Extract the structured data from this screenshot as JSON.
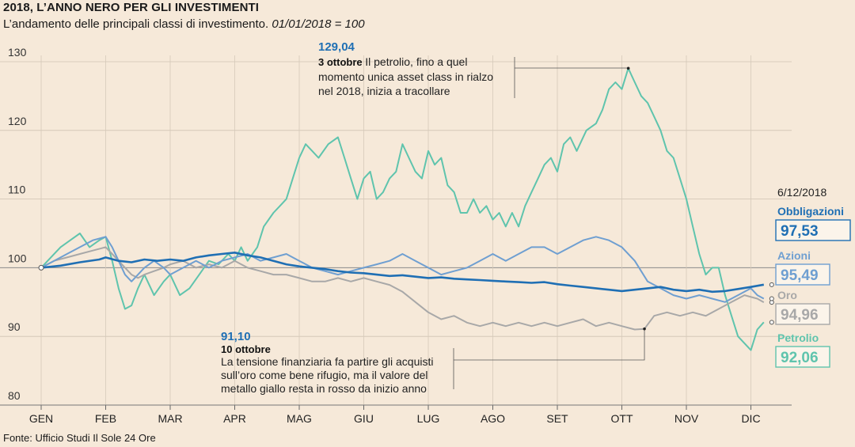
{
  "header": {
    "title": "2018, L’ANNO NERO PER GLI INVESTIMENTI",
    "subtitle": "L’andamento delle principali classi di investimento.",
    "subtitle_italic": "01/01/2018 = 100"
  },
  "footer": {
    "source": "Fonte: Ufficio Studi Il Sole 24 Ore"
  },
  "chart_data": {
    "type": "line",
    "title": "2018, L’ANNO NERO PER GLI INVESTIMENTI",
    "subtitle": "L’andamento delle principali classi di investimento. 01/01/2018 = 100",
    "xlabel": "",
    "ylabel": "",
    "ylim": [
      80,
      130
    ],
    "yticks": [
      80,
      90,
      100,
      110,
      120,
      130
    ],
    "grid": true,
    "month_labels": [
      "GEN",
      "FEB",
      "MAR",
      "APR",
      "MAG",
      "GIU",
      "LUG",
      "AGO",
      "SET",
      "OTT",
      "NOV",
      "DIC"
    ],
    "x_unit": "months since 1 Jan 2018 (0 = GEN, 11 = DIC)",
    "reference_line": 100,
    "legend": {
      "date": "6/12/2018",
      "placement": "right",
      "entries": [
        {
          "name": "Obbligazioni",
          "value": "97,53",
          "color": "#1f6fb4"
        },
        {
          "name": "Azioni",
          "value": "95,49",
          "color": "#6f9fd1"
        },
        {
          "name": "Oro",
          "value": "94,96",
          "color": "#a8a8a8"
        },
        {
          "name": "Petrolio",
          "value": "92,06",
          "color": "#5fc4ad"
        }
      ]
    },
    "annotations": [
      {
        "value": "129,04",
        "date": "3 ottobre",
        "lines": [
          "Il petrolio, fino a quel",
          "momento unica asset class in rialzo",
          "nel 2018, inizia a tracollare"
        ],
        "series": "Petrolio",
        "point": [
          9.1,
          129.04
        ]
      },
      {
        "value": "91,10",
        "date": "10 ottobre",
        "lines": [
          "La tensione finanziaria fa partire gli acquisti",
          "sull’oro come bene rifugio, ma il valore del",
          "metallo giallo resta in rosso da inizio anno"
        ],
        "series": "Oro",
        "point": [
          9.35,
          91.1
        ]
      }
    ],
    "series": [
      {
        "name": "Petrolio",
        "color": "#5fc4ad",
        "points": [
          [
            0,
            100
          ],
          [
            0.15,
            101.5
          ],
          [
            0.3,
            103
          ],
          [
            0.45,
            104
          ],
          [
            0.6,
            105
          ],
          [
            0.75,
            103
          ],
          [
            0.9,
            104
          ],
          [
            1.0,
            104.5
          ],
          [
            1.1,
            101
          ],
          [
            1.2,
            97
          ],
          [
            1.3,
            94
          ],
          [
            1.4,
            94.5
          ],
          [
            1.5,
            97
          ],
          [
            1.6,
            99
          ],
          [
            1.75,
            96
          ],
          [
            1.9,
            98
          ],
          [
            2.0,
            99
          ],
          [
            2.15,
            96
          ],
          [
            2.3,
            97
          ],
          [
            2.45,
            99
          ],
          [
            2.6,
            101
          ],
          [
            2.75,
            100.5
          ],
          [
            2.9,
            102
          ],
          [
            3.0,
            101
          ],
          [
            3.1,
            103
          ],
          [
            3.2,
            101
          ],
          [
            3.35,
            103
          ],
          [
            3.45,
            106
          ],
          [
            3.6,
            108
          ],
          [
            3.7,
            109
          ],
          [
            3.8,
            110
          ],
          [
            3.9,
            113
          ],
          [
            4.0,
            116
          ],
          [
            4.1,
            118
          ],
          [
            4.2,
            117
          ],
          [
            4.3,
            116
          ],
          [
            4.45,
            118
          ],
          [
            4.6,
            119
          ],
          [
            4.7,
            116
          ],
          [
            4.8,
            113
          ],
          [
            4.9,
            110
          ],
          [
            5.0,
            113
          ],
          [
            5.1,
            114
          ],
          [
            5.2,
            110
          ],
          [
            5.3,
            111
          ],
          [
            5.4,
            113
          ],
          [
            5.5,
            114
          ],
          [
            5.6,
            118
          ],
          [
            5.7,
            116
          ],
          [
            5.8,
            114
          ],
          [
            5.9,
            113
          ],
          [
            6.0,
            117
          ],
          [
            6.1,
            115
          ],
          [
            6.2,
            116
          ],
          [
            6.3,
            112
          ],
          [
            6.4,
            111
          ],
          [
            6.5,
            108
          ],
          [
            6.6,
            108
          ],
          [
            6.7,
            110
          ],
          [
            6.8,
            108
          ],
          [
            6.9,
            109
          ],
          [
            7.0,
            107
          ],
          [
            7.1,
            108
          ],
          [
            7.2,
            106
          ],
          [
            7.3,
            108
          ],
          [
            7.4,
            106
          ],
          [
            7.5,
            109
          ],
          [
            7.6,
            111
          ],
          [
            7.7,
            113
          ],
          [
            7.8,
            115
          ],
          [
            7.9,
            116
          ],
          [
            8.0,
            114
          ],
          [
            8.1,
            118
          ],
          [
            8.2,
            119
          ],
          [
            8.3,
            117
          ],
          [
            8.45,
            120
          ],
          [
            8.6,
            121
          ],
          [
            8.7,
            123
          ],
          [
            8.8,
            126
          ],
          [
            8.9,
            127
          ],
          [
            9.0,
            126
          ],
          [
            9.1,
            129.04
          ],
          [
            9.2,
            127
          ],
          [
            9.3,
            125
          ],
          [
            9.4,
            124
          ],
          [
            9.5,
            122
          ],
          [
            9.6,
            120
          ],
          [
            9.7,
            117
          ],
          [
            9.8,
            116
          ],
          [
            9.9,
            113
          ],
          [
            10.0,
            110
          ],
          [
            10.1,
            106
          ],
          [
            10.2,
            102
          ],
          [
            10.3,
            99
          ],
          [
            10.4,
            100
          ],
          [
            10.5,
            100
          ],
          [
            10.6,
            96
          ],
          [
            10.7,
            93
          ],
          [
            10.8,
            90
          ],
          [
            10.9,
            89
          ],
          [
            11.0,
            88
          ],
          [
            11.1,
            91
          ],
          [
            11.2,
            92.06
          ]
        ]
      },
      {
        "name": "Oro",
        "color": "#a8a8a8",
        "points": [
          [
            0,
            100
          ],
          [
            0.2,
            101
          ],
          [
            0.4,
            101.5
          ],
          [
            0.6,
            102
          ],
          [
            0.8,
            102.5
          ],
          [
            1.0,
            103
          ],
          [
            1.1,
            102
          ],
          [
            1.2,
            101
          ],
          [
            1.3,
            100
          ],
          [
            1.4,
            99
          ],
          [
            1.5,
            98.5
          ],
          [
            1.6,
            99
          ],
          [
            1.75,
            99.5
          ],
          [
            1.9,
            100
          ],
          [
            2.0,
            100.5
          ],
          [
            2.2,
            101
          ],
          [
            2.4,
            100
          ],
          [
            2.6,
            100.5
          ],
          [
            2.8,
            100
          ],
          [
            3.0,
            101
          ],
          [
            3.2,
            100
          ],
          [
            3.4,
            99.5
          ],
          [
            3.6,
            99
          ],
          [
            3.8,
            99
          ],
          [
            4.0,
            98.5
          ],
          [
            4.2,
            98
          ],
          [
            4.4,
            98
          ],
          [
            4.6,
            98.5
          ],
          [
            4.8,
            98
          ],
          [
            5.0,
            98.5
          ],
          [
            5.2,
            98
          ],
          [
            5.4,
            97.5
          ],
          [
            5.6,
            96.5
          ],
          [
            5.8,
            95
          ],
          [
            6.0,
            93.5
          ],
          [
            6.2,
            92.5
          ],
          [
            6.4,
            93
          ],
          [
            6.6,
            92
          ],
          [
            6.8,
            91.5
          ],
          [
            7.0,
            92
          ],
          [
            7.2,
            91.5
          ],
          [
            7.4,
            92
          ],
          [
            7.6,
            91.5
          ],
          [
            7.8,
            92
          ],
          [
            8.0,
            91.5
          ],
          [
            8.2,
            92
          ],
          [
            8.4,
            92.5
          ],
          [
            8.6,
            91.5
          ],
          [
            8.8,
            92
          ],
          [
            9.0,
            91.5
          ],
          [
            9.2,
            91
          ],
          [
            9.35,
            91.1
          ],
          [
            9.5,
            93
          ],
          [
            9.7,
            93.5
          ],
          [
            9.9,
            93
          ],
          [
            10.1,
            93.5
          ],
          [
            10.3,
            93
          ],
          [
            10.5,
            94
          ],
          [
            10.7,
            95
          ],
          [
            10.9,
            96
          ],
          [
            11.1,
            95.5
          ],
          [
            11.2,
            94.96
          ]
        ]
      },
      {
        "name": "Azioni",
        "color": "#6f9fd1",
        "points": [
          [
            0,
            100
          ],
          [
            0.2,
            101
          ],
          [
            0.4,
            102
          ],
          [
            0.6,
            103
          ],
          [
            0.8,
            104
          ],
          [
            1.0,
            104.5
          ],
          [
            1.1,
            103
          ],
          [
            1.2,
            101
          ],
          [
            1.3,
            99
          ],
          [
            1.4,
            98
          ],
          [
            1.5,
            99
          ],
          [
            1.6,
            100
          ],
          [
            1.75,
            101
          ],
          [
            1.9,
            100
          ],
          [
            2.0,
            99
          ],
          [
            2.2,
            100
          ],
          [
            2.4,
            101
          ],
          [
            2.6,
            100
          ],
          [
            2.8,
            101
          ],
          [
            3.0,
            101.5
          ],
          [
            3.2,
            102
          ],
          [
            3.4,
            101
          ],
          [
            3.6,
            101.5
          ],
          [
            3.8,
            102
          ],
          [
            4.0,
            101
          ],
          [
            4.2,
            100
          ],
          [
            4.4,
            99.5
          ],
          [
            4.6,
            99
          ],
          [
            4.8,
            99.5
          ],
          [
            5.0,
            100
          ],
          [
            5.2,
            100.5
          ],
          [
            5.4,
            101
          ],
          [
            5.6,
            102
          ],
          [
            5.8,
            101
          ],
          [
            6.0,
            100
          ],
          [
            6.2,
            99
          ],
          [
            6.4,
            99.5
          ],
          [
            6.6,
            100
          ],
          [
            6.8,
            101
          ],
          [
            7.0,
            102
          ],
          [
            7.2,
            101
          ],
          [
            7.4,
            102
          ],
          [
            7.6,
            103
          ],
          [
            7.8,
            103
          ],
          [
            8.0,
            102
          ],
          [
            8.2,
            103
          ],
          [
            8.4,
            104
          ],
          [
            8.6,
            104.5
          ],
          [
            8.8,
            104
          ],
          [
            9.0,
            103
          ],
          [
            9.2,
            101
          ],
          [
            9.4,
            98
          ],
          [
            9.6,
            97
          ],
          [
            9.8,
            96
          ],
          [
            10.0,
            95.5
          ],
          [
            10.2,
            96
          ],
          [
            10.4,
            95.5
          ],
          [
            10.6,
            95
          ],
          [
            10.8,
            96
          ],
          [
            11.0,
            97
          ],
          [
            11.1,
            96
          ],
          [
            11.2,
            95.49
          ]
        ]
      },
      {
        "name": "Obbligazioni",
        "color": "#1f6fb4",
        "points": [
          [
            0,
            100
          ],
          [
            0.3,
            100.3
          ],
          [
            0.6,
            100.8
          ],
          [
            0.9,
            101.2
          ],
          [
            1.0,
            101.5
          ],
          [
            1.2,
            101
          ],
          [
            1.4,
            100.8
          ],
          [
            1.6,
            101.2
          ],
          [
            1.8,
            101
          ],
          [
            2.0,
            101.2
          ],
          [
            2.2,
            101
          ],
          [
            2.4,
            101.5
          ],
          [
            2.6,
            101.8
          ],
          [
            2.8,
            102
          ],
          [
            3.0,
            102.2
          ],
          [
            3.2,
            101.8
          ],
          [
            3.4,
            101.5
          ],
          [
            3.6,
            101
          ],
          [
            3.8,
            100.5
          ],
          [
            4.0,
            100.2
          ],
          [
            4.2,
            100
          ],
          [
            4.4,
            99.8
          ],
          [
            4.6,
            99.5
          ],
          [
            4.8,
            99.3
          ],
          [
            5.0,
            99.2
          ],
          [
            5.2,
            99
          ],
          [
            5.4,
            98.8
          ],
          [
            5.6,
            98.9
          ],
          [
            5.8,
            98.7
          ],
          [
            6.0,
            98.5
          ],
          [
            6.2,
            98.6
          ],
          [
            6.4,
            98.4
          ],
          [
            6.6,
            98.3
          ],
          [
            6.8,
            98.2
          ],
          [
            7.0,
            98.1
          ],
          [
            7.2,
            98
          ],
          [
            7.4,
            97.9
          ],
          [
            7.6,
            97.8
          ],
          [
            7.8,
            97.9
          ],
          [
            8.0,
            97.6
          ],
          [
            8.2,
            97.4
          ],
          [
            8.4,
            97.2
          ],
          [
            8.6,
            97
          ],
          [
            8.8,
            96.8
          ],
          [
            9.0,
            96.6
          ],
          [
            9.2,
            96.8
          ],
          [
            9.4,
            97
          ],
          [
            9.6,
            97.2
          ],
          [
            9.8,
            96.8
          ],
          [
            10.0,
            96.6
          ],
          [
            10.2,
            96.8
          ],
          [
            10.4,
            96.5
          ],
          [
            10.6,
            96.6
          ],
          [
            10.8,
            96.9
          ],
          [
            11.0,
            97.2
          ],
          [
            11.2,
            97.53
          ]
        ]
      }
    ]
  }
}
